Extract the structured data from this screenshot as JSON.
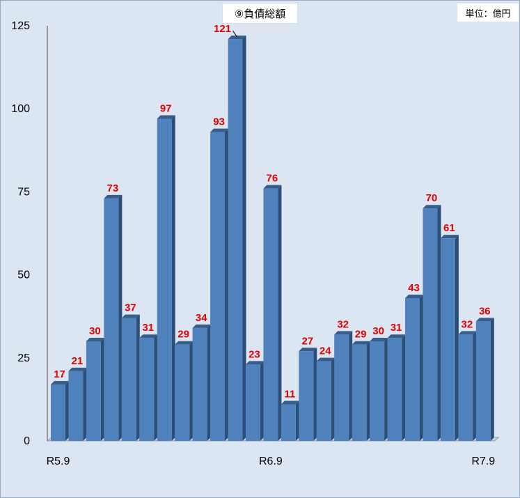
{
  "title": "⑨負債総額",
  "unit": "単位：億円",
  "chart_data": {
    "type": "bar",
    "title": "⑨負債総額",
    "unit_label": "単位：億円",
    "categories": [
      "R5.9",
      "",
      "",
      "",
      "",
      "",
      "",
      "",
      "",
      "",
      "",
      "",
      "R6.9",
      "",
      "",
      "",
      "",
      "",
      "",
      "",
      "",
      "",
      "",
      "",
      "R7.9"
    ],
    "x_tick_labels": [
      "R5.9",
      "R6.9",
      "R7.9"
    ],
    "values": [
      17,
      21,
      30,
      73,
      37,
      31,
      97,
      29,
      34,
      93,
      121,
      23,
      76,
      11,
      27,
      24,
      32,
      29,
      30,
      31,
      43,
      70,
      61,
      32,
      36
    ],
    "ylim": [
      0,
      125
    ],
    "y_ticks": [
      0,
      25,
      50,
      75,
      100,
      125
    ],
    "grid": false,
    "legend": "none",
    "bar_color": "#4f81bd",
    "bar_side_color": "#2c4d75",
    "bar_top_color": "#385d8a",
    "label_color": "#e30000",
    "background_color": "#dce6f2"
  }
}
